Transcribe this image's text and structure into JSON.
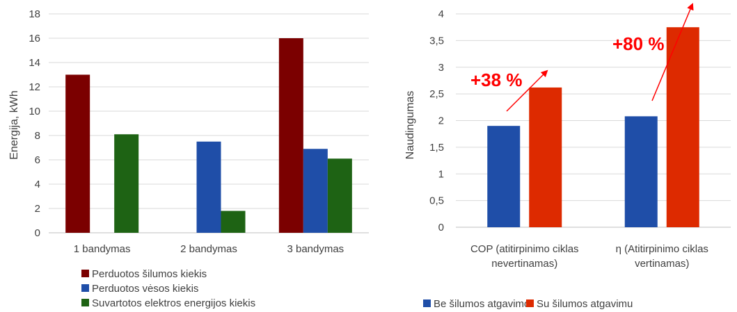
{
  "chart_data": [
    {
      "type": "bar",
      "categories": [
        "1 bandymas",
        "2 bandymas",
        "3 bandymas"
      ],
      "series": [
        {
          "name": "Perduotos šilumos kiekis",
          "values": [
            13,
            0,
            16
          ],
          "color": "#7b0000"
        },
        {
          "name": "Perduotos vėsos kiekis",
          "values": [
            0,
            7.5,
            6.9
          ],
          "color": "#1f4ea8"
        },
        {
          "name": "Suvartotos elektros energijos kiekis",
          "values": [
            8.1,
            1.8,
            6.1
          ],
          "color": "#1e6314"
        }
      ],
      "ylabel": "Energija, kWh",
      "ylim": [
        0,
        18
      ],
      "yticks": [
        "0",
        "2",
        "4",
        "6",
        "8",
        "10",
        "12",
        "14",
        "16",
        "18"
      ],
      "grid": true,
      "legend": "bottom"
    },
    {
      "type": "bar",
      "categories": [
        "COP (atitirpinimo ciklas nevertinamas)",
        "η (Atitirpinimo ciklas vertinamas)"
      ],
      "category_lines": [
        [
          "COP (atitirpinimo ciklas",
          "nevertinamas)"
        ],
        [
          "η (Atitirpinimo ciklas",
          "vertinamas)"
        ]
      ],
      "series": [
        {
          "name": "Be šilumos atgavimo",
          "values": [
            1.9,
            2.08
          ],
          "color": "#1f4ea8"
        },
        {
          "name": "Su šilumos atgavimu",
          "values": [
            2.62,
            3.75
          ],
          "color": "#dd2a00"
        }
      ],
      "ylabel": "Naudingumas",
      "ylim": [
        0,
        4
      ],
      "yticks": [
        "0",
        "0,5",
        "1",
        "1,5",
        "2",
        "2,5",
        "3",
        "3,5",
        "4"
      ],
      "grid": true,
      "legend": "bottom",
      "annotations": [
        "+38 %",
        "+80 %"
      ],
      "annotation_color": "#ff0000"
    }
  ]
}
